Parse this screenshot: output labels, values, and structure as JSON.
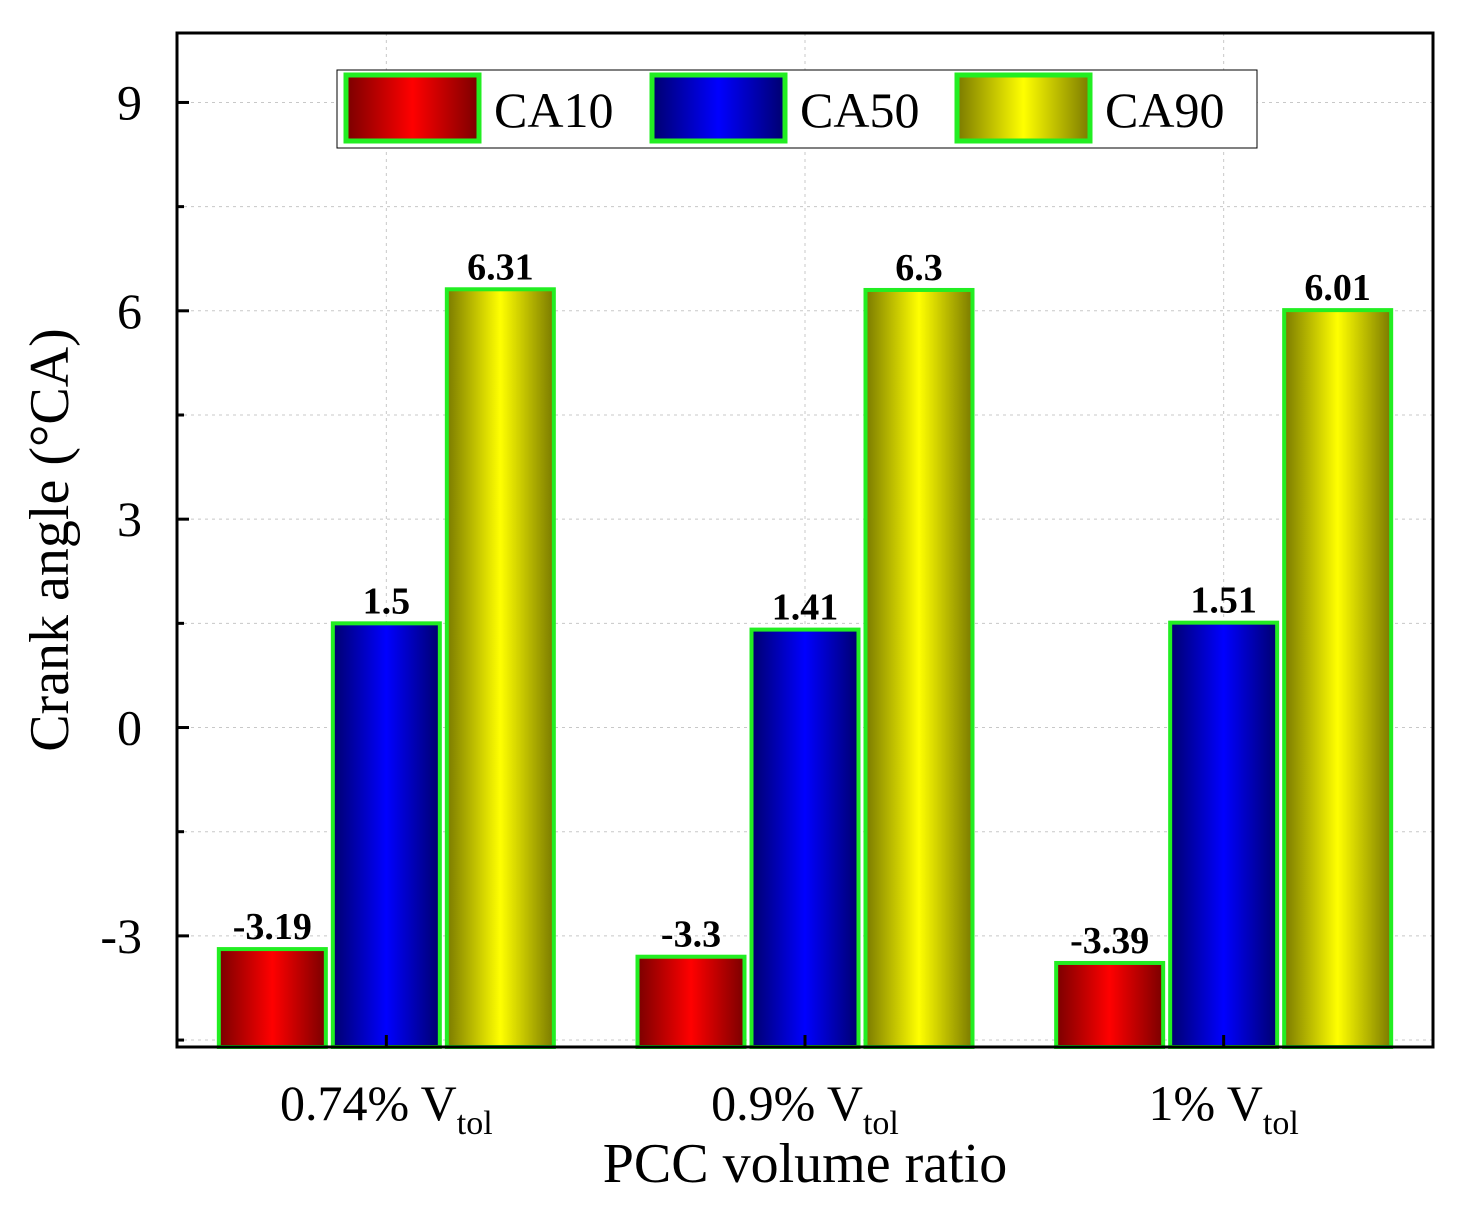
{
  "chart_data": {
    "type": "bar",
    "title": "",
    "categories": [
      {
        "main": "0.74% V",
        "sub": "tol"
      },
      {
        "main": "0.9% V",
        "sub": "tol"
      },
      {
        "main": "1% V",
        "sub": "tol"
      }
    ],
    "series": [
      {
        "name": "CA10",
        "values": [
          -3.19,
          -3.3,
          -3.39
        ],
        "labels": [
          "-3.19",
          "-3.3",
          "-3.39"
        ],
        "color": "#ff0000",
        "shade": "#7a0000"
      },
      {
        "name": "CA50",
        "values": [
          1.5,
          1.41,
          1.51
        ],
        "labels": [
          "1.5",
          "1.41",
          "1.51"
        ],
        "color": "#0000ff",
        "shade": "#00006e"
      },
      {
        "name": "CA90",
        "values": [
          6.31,
          6.3,
          6.01
        ],
        "labels": [
          "6.31",
          "6.3",
          "6.01"
        ],
        "color": "#ffff00",
        "shade": "#7a7a00"
      }
    ],
    "xlabel": "PCC volume ratio",
    "ylabel": "Crank angle (°CA)",
    "ylim": [
      -4.6,
      10.0
    ],
    "yticks": [
      -3,
      0,
      3,
      6,
      9
    ],
    "ytick_labels": [
      "-3",
      "0",
      "3",
      "6",
      "9"
    ],
    "grid": true,
    "legend": "top-center",
    "bar_edge_color": "#22ee22"
  }
}
